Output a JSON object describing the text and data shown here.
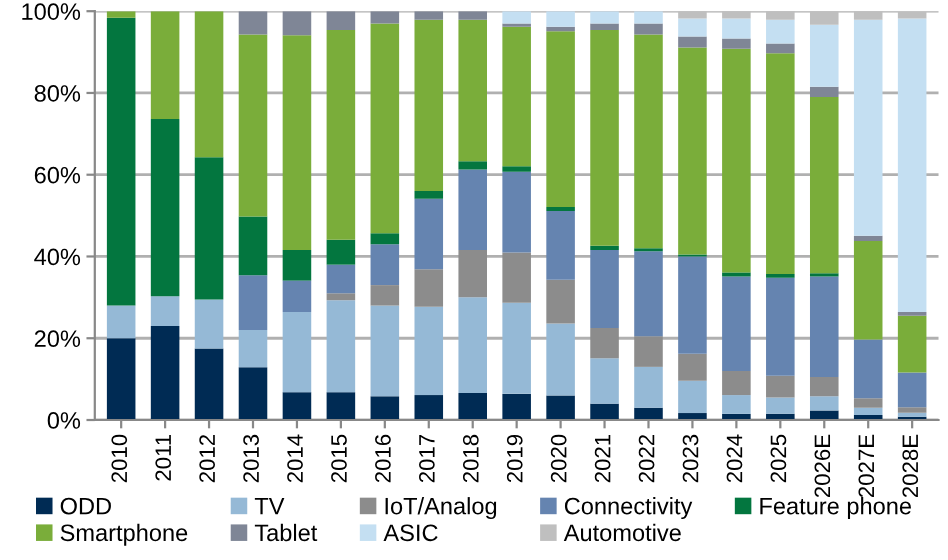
{
  "chart_data": {
    "type": "bar",
    "stacked": true,
    "categories": [
      "2010",
      "2011",
      "2012",
      "2013",
      "2014",
      "2015",
      "2016",
      "2017",
      "2018",
      "2019",
      "2020",
      "2021",
      "2022",
      "2023",
      "2024",
      "2025",
      "2026E",
      "2027E",
      "2028E"
    ],
    "series": [
      {
        "name": "ODD",
        "color": "#002b54",
        "values": [
          20,
          23,
          17.5,
          12.9,
          6.8,
          6.8,
          5.8,
          6.1,
          6.6,
          6.4,
          6,
          4,
          3,
          1.7,
          1.5,
          1.5,
          2.3,
          1.2,
          0.8
        ]
      },
      {
        "name": "TV",
        "color": "#95b9d6",
        "values": [
          8,
          7.3,
          12,
          9.1,
          19.6,
          22.5,
          22.2,
          21.6,
          23.4,
          22.3,
          17.6,
          11.1,
          10,
          7.9,
          4.6,
          4,
          3.5,
          1.8,
          1
        ]
      },
      {
        "name": "IoT/Analog",
        "color": "#8c8c8c",
        "values": [
          0,
          0,
          0,
          0,
          0,
          1.7,
          5,
          9.2,
          11.6,
          12.3,
          10.7,
          7.4,
          7.5,
          6.6,
          5.9,
          5.3,
          4.7,
          2.3,
          1.3
        ]
      },
      {
        "name": "Connectivity",
        "color": "#6584b0",
        "values": [
          0,
          0,
          0,
          13.4,
          7.7,
          7,
          10,
          17.2,
          19.7,
          19.7,
          16.8,
          19.1,
          20.8,
          23.8,
          23.1,
          24,
          24.6,
          14.4,
          8.5
        ]
      },
      {
        "name": "Feature phone",
        "color": "#03763f",
        "values": [
          70.4,
          43.3,
          34.8,
          14.4,
          7.5,
          6.1,
          2.7,
          1.9,
          2,
          1.4,
          1,
          1,
          0.7,
          0.5,
          1,
          0.9,
          0.8,
          0,
          0
        ]
      },
      {
        "name": "Smartphone",
        "color": "#7aad3a",
        "values": [
          1.6,
          26.4,
          35.7,
          44.5,
          52.5,
          51.3,
          51.3,
          41.9,
          34.6,
          34.1,
          43,
          52.8,
          52.3,
          50.6,
          54.7,
          54,
          43.1,
          24.1,
          13.9
        ]
      },
      {
        "name": "Tablet",
        "color": "#7f8696",
        "values": [
          0,
          0,
          0,
          5.7,
          5.9,
          4.6,
          3,
          2.1,
          2.1,
          0.8,
          1.1,
          1.6,
          2.7,
          2.7,
          2.5,
          2.4,
          2.5,
          1.3,
          0.9
        ]
      },
      {
        "name": "ASIC",
        "color": "#c4dff2",
        "values": [
          0,
          0,
          0,
          0,
          0,
          0,
          0,
          0,
          0,
          3,
          3.8,
          3,
          3,
          4.4,
          4.9,
          5.8,
          15.2,
          52.8,
          71.8
        ]
      },
      {
        "name": "Automotive",
        "color": "#bfbfbf",
        "values": [
          0,
          0,
          0,
          0,
          0,
          0,
          0,
          0,
          null,
          0,
          0,
          0,
          0,
          1.8,
          1.8,
          2.1,
          3.3,
          2.1,
          1.6
        ]
      }
    ],
    "ylim": [
      0,
      100
    ],
    "yticks": [
      {
        "value": 0,
        "label": "0%"
      },
      {
        "value": 20,
        "label": "20%"
      },
      {
        "value": 40,
        "label": "40%"
      },
      {
        "value": 60,
        "label": "60%"
      },
      {
        "value": 80,
        "label": "80%"
      },
      {
        "value": 100,
        "label": "100%"
      }
    ],
    "grid": "y",
    "legend": "bottom"
  }
}
